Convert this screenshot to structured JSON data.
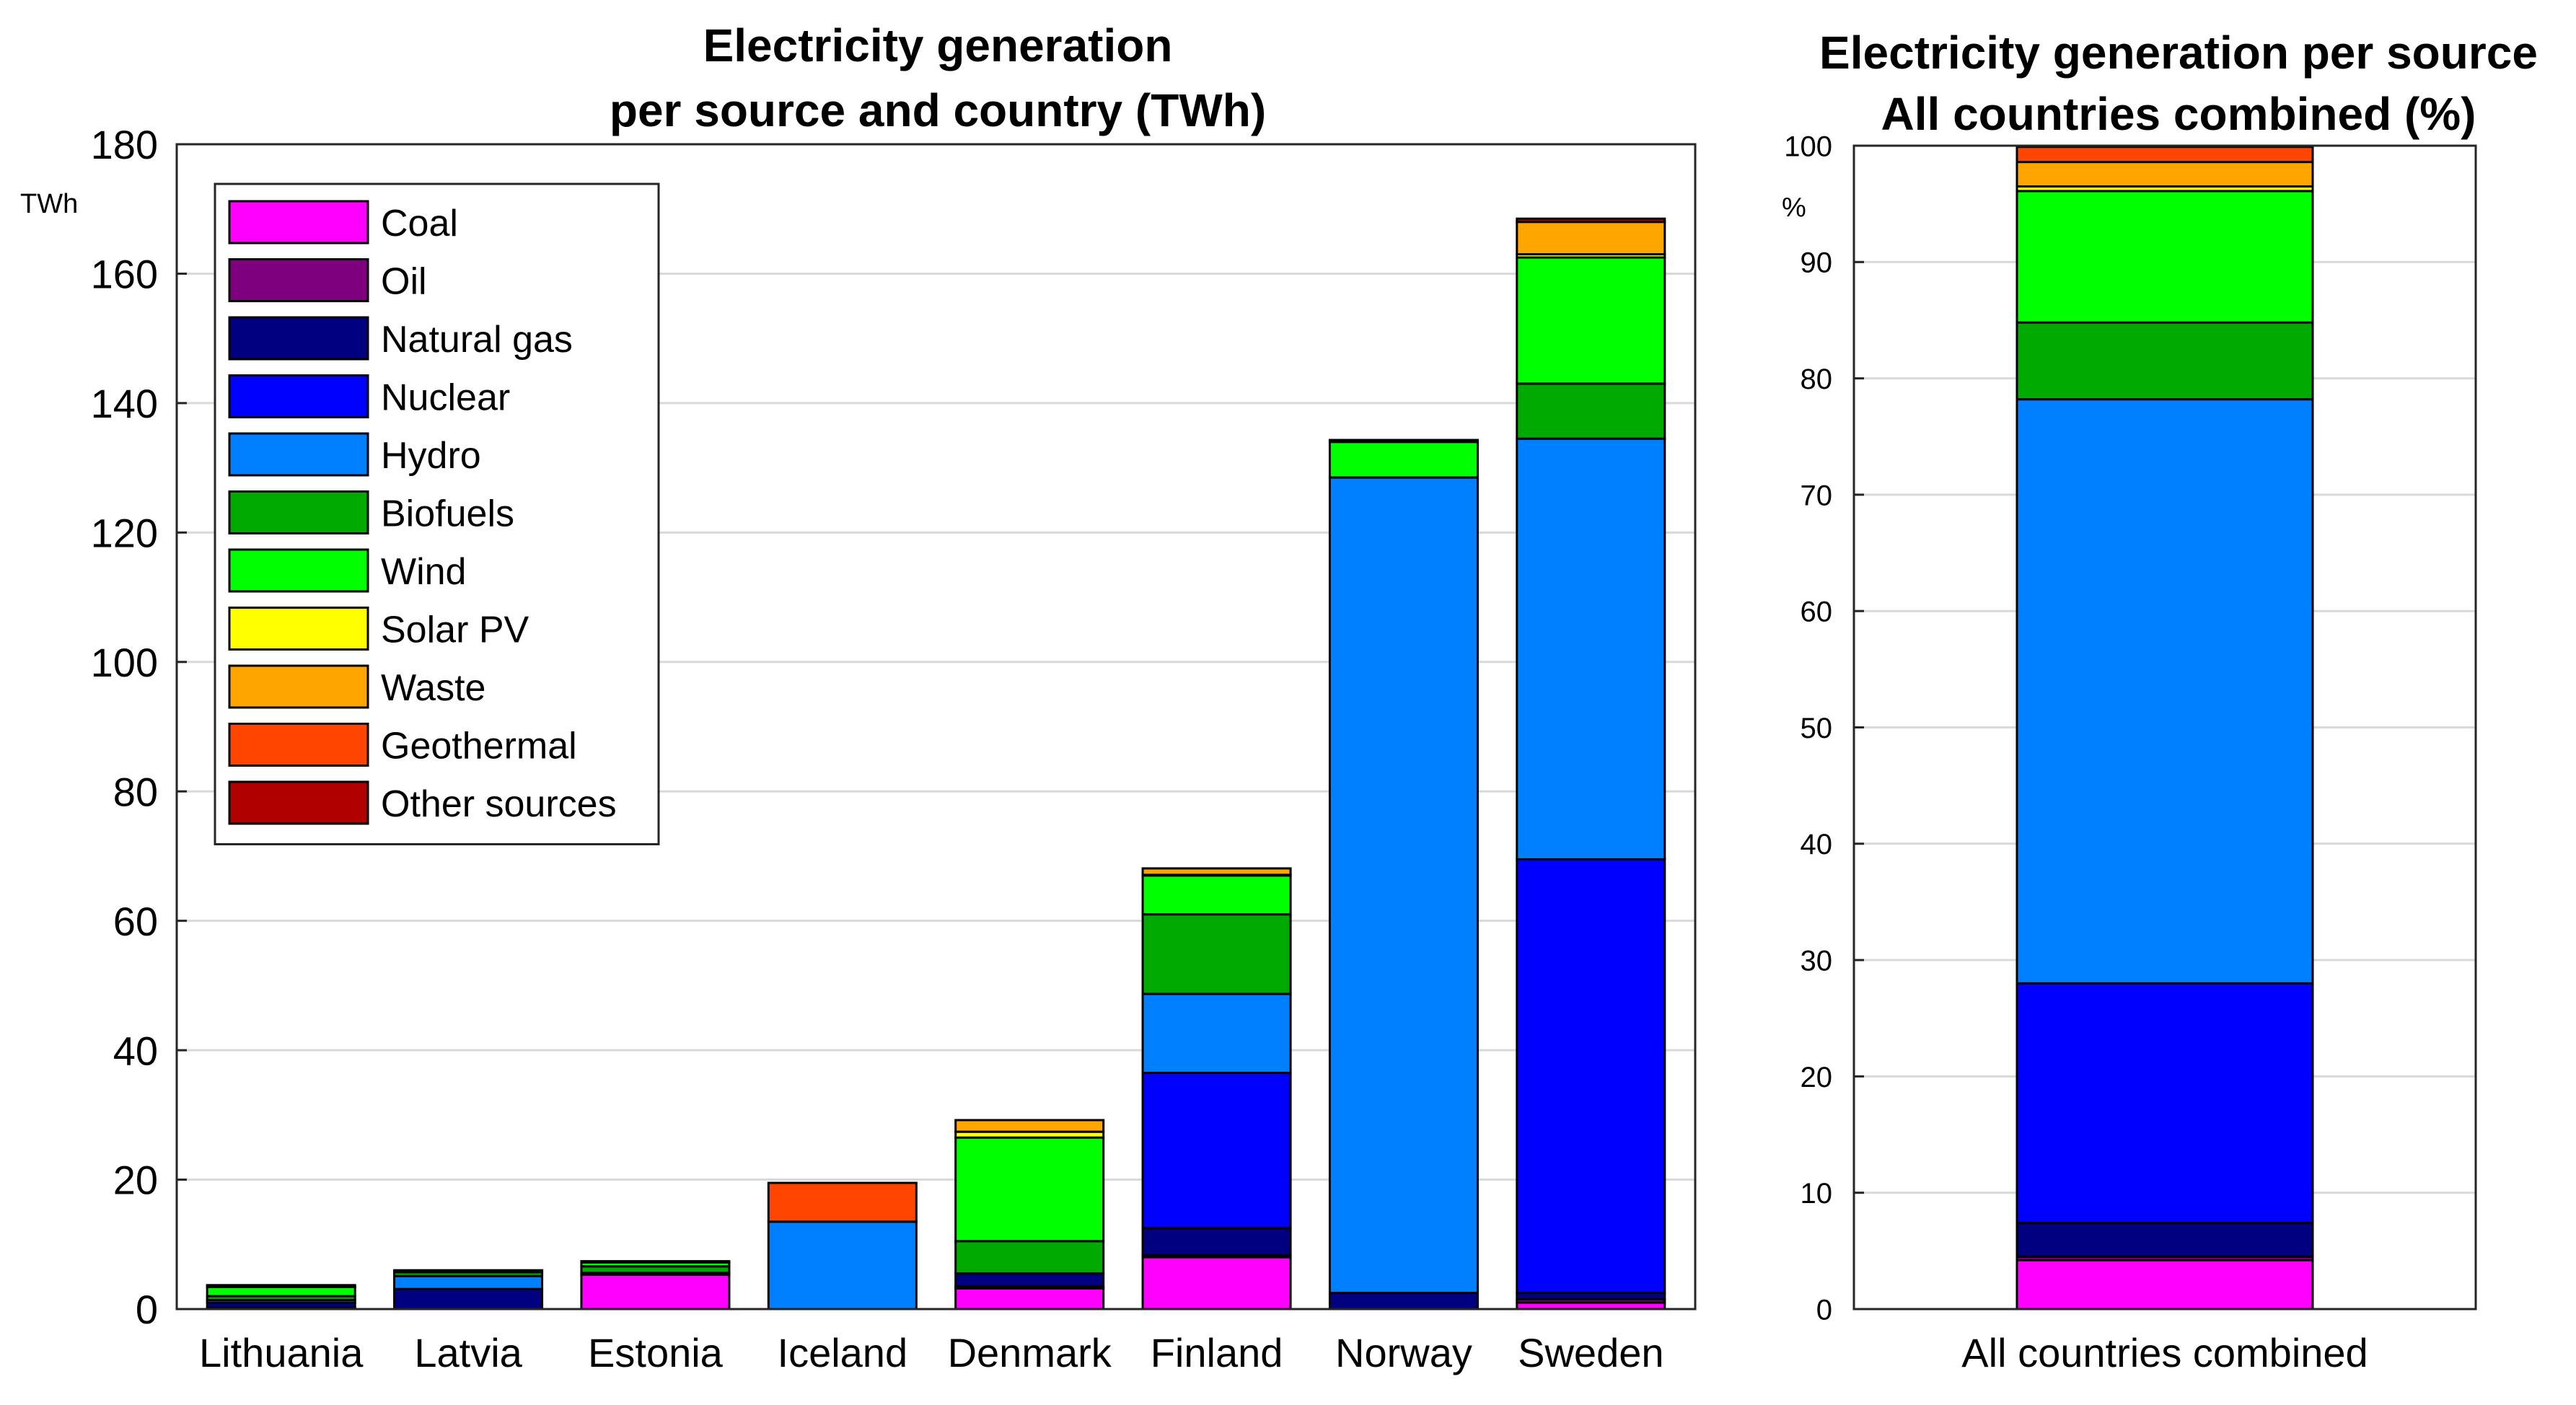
{
  "chart_data": [
    {
      "type": "bar",
      "stacked": true,
      "title": "Electricity generation per source and country (TWh)",
      "title_lines": [
        "Electricity generation",
        "per source and country (TWh)"
      ],
      "ylabel": "TWh",
      "ylim": [
        0,
        180
      ],
      "yticks": [
        0,
        20,
        40,
        60,
        80,
        100,
        120,
        140,
        160,
        180
      ],
      "legend_position": "top-left",
      "categories": [
        "Lithuania",
        "Latvia",
        "Estonia",
        "Iceland",
        "Denmark",
        "Finland",
        "Norway",
        "Sweden"
      ],
      "series": [
        {
          "name": "Coal",
          "color": "#ff00ff",
          "values": [
            0,
            0,
            5.3,
            0,
            3.2,
            8.0,
            0,
            1.0
          ]
        },
        {
          "name": "Oil",
          "color": "#7f007f",
          "values": [
            0.2,
            0,
            0.3,
            0,
            0.3,
            0.3,
            0,
            0.5
          ]
        },
        {
          "name": "Natural gas",
          "color": "#000080",
          "values": [
            0.8,
            3.1,
            0,
            0,
            2.0,
            4.2,
            2.5,
            1.0
          ]
        },
        {
          "name": "Nuclear",
          "color": "#0000ff",
          "values": [
            0,
            0,
            0,
            0,
            0,
            24.0,
            0,
            67.0
          ]
        },
        {
          "name": "Hydro",
          "color": "#0080ff",
          "values": [
            0.4,
            2.0,
            0,
            13.5,
            0,
            12.2,
            126.0,
            65.0
          ]
        },
        {
          "name": "Biofuels",
          "color": "#00aa00",
          "values": [
            0.6,
            0.6,
            1.0,
            0,
            5.0,
            12.3,
            0,
            8.5
          ]
        },
        {
          "name": "Wind",
          "color": "#00ff00",
          "values": [
            1.4,
            0.2,
            0.6,
            0,
            16.0,
            6.0,
            5.5,
            19.5
          ]
        },
        {
          "name": "Solar PV",
          "color": "#ffff00",
          "values": [
            0.1,
            0,
            0,
            0,
            0.9,
            0.1,
            0,
            0.5
          ]
        },
        {
          "name": "Waste",
          "color": "#ffa500",
          "values": [
            0.2,
            0.1,
            0.2,
            0,
            1.8,
            1.0,
            0.3,
            5.0
          ]
        },
        {
          "name": "Geothermal",
          "color": "#ff4500",
          "values": [
            0,
            0,
            0,
            6.0,
            0,
            0,
            0,
            0
          ]
        },
        {
          "name": "Other sources",
          "color": "#b00000",
          "values": [
            0,
            0,
            0,
            0,
            0,
            0,
            0,
            0.5
          ]
        }
      ]
    },
    {
      "type": "bar",
      "stacked": true,
      "title": "Electricity generation per source All countries combined (%)",
      "title_lines": [
        "Electricity generation per source",
        "All countries combined (%)"
      ],
      "ylabel": "%",
      "ylim": [
        0,
        100
      ],
      "yticks": [
        0,
        10,
        20,
        30,
        40,
        50,
        60,
        70,
        80,
        90,
        100
      ],
      "categories": [
        "All countries combined"
      ],
      "series": [
        {
          "name": "Coal",
          "color": "#ff00ff",
          "values": [
            4.2
          ]
        },
        {
          "name": "Oil",
          "color": "#7f007f",
          "values": [
            0.3
          ]
        },
        {
          "name": "Natural gas",
          "color": "#000080",
          "values": [
            2.9
          ]
        },
        {
          "name": "Nuclear",
          "color": "#0000ff",
          "values": [
            20.6
          ]
        },
        {
          "name": "Hydro",
          "color": "#0080ff",
          "values": [
            50.2
          ]
        },
        {
          "name": "Biofuels",
          "color": "#00aa00",
          "values": [
            6.6
          ]
        },
        {
          "name": "Wind",
          "color": "#00ff00",
          "values": [
            11.3
          ]
        },
        {
          "name": "Solar PV",
          "color": "#ffff00",
          "values": [
            0.4
          ]
        },
        {
          "name": "Waste",
          "color": "#ffa500",
          "values": [
            2.1
          ]
        },
        {
          "name": "Geothermal",
          "color": "#ff4500",
          "values": [
            1.3
          ]
        },
        {
          "name": "Other sources",
          "color": "#b00000",
          "values": [
            0.1
          ]
        }
      ]
    }
  ]
}
